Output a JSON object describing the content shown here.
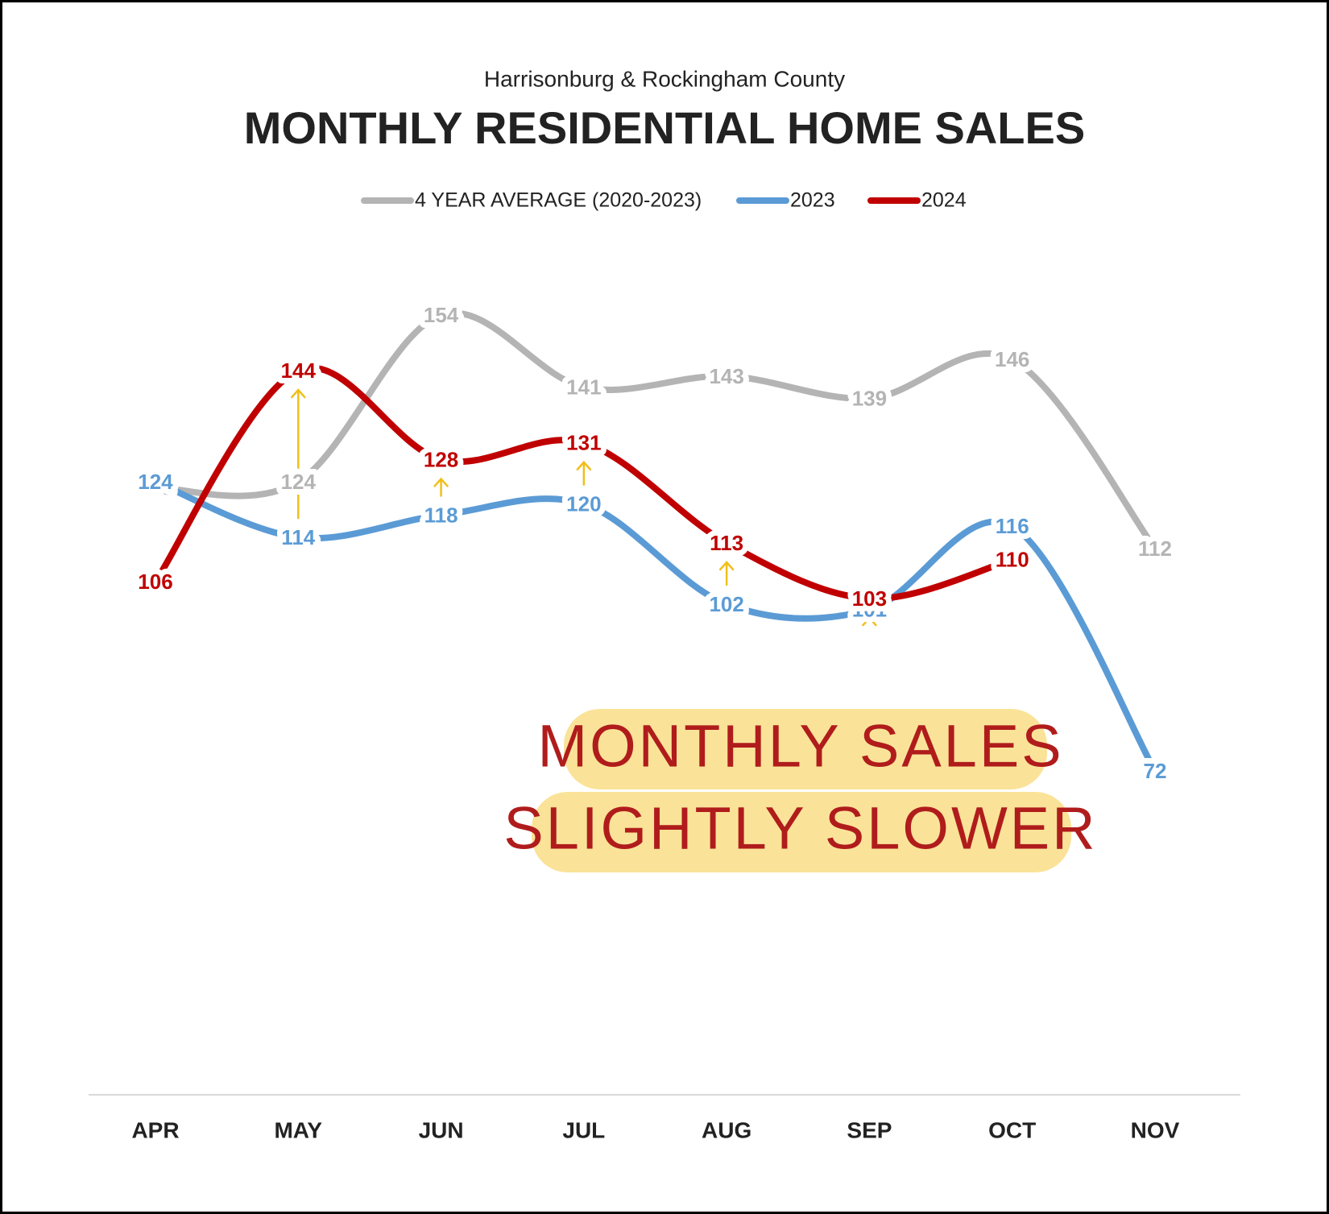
{
  "chart_data": {
    "type": "line",
    "subtitle": "Harrisonburg & Rockingham County",
    "title": "MONTHLY RESIDENTIAL HOME SALES",
    "categories": [
      "APR",
      "MAY",
      "JUN",
      "JUL",
      "AUG",
      "SEP",
      "OCT",
      "NOV"
    ],
    "series": [
      {
        "name": "4 YEAR AVERAGE (2020-2023)",
        "color": "#b4b4b4",
        "values": [
          123,
          124,
          154,
          141,
          143,
          139,
          146,
          112
        ]
      },
      {
        "name": "2023",
        "color": "#5b9bd5",
        "values": [
          124,
          114,
          118,
          120,
          102,
          101,
          116,
          72
        ]
      },
      {
        "name": "2024",
        "color": "#c00000",
        "values": [
          106,
          144,
          128,
          131,
          113,
          103,
          110,
          null
        ]
      }
    ],
    "annotation": [
      "MONTHLY SALES",
      "SLIGHTLY SLOWER"
    ],
    "smooth": true,
    "legend": "top"
  }
}
